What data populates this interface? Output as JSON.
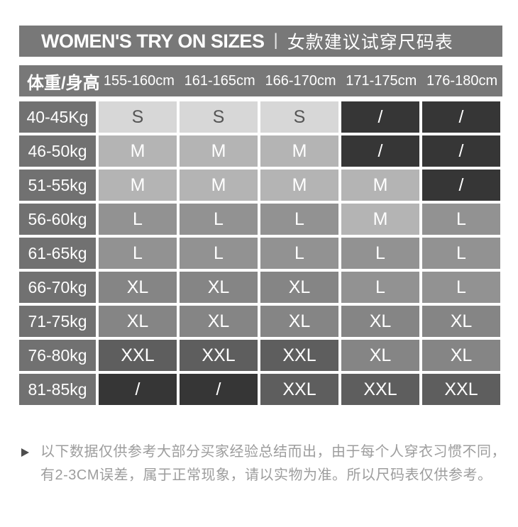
{
  "title": {
    "en": "WOMEN'S TRY ON SIZES",
    "separator": "|",
    "zh": "女款建议试穿尺码表"
  },
  "chart_data": {
    "type": "table",
    "title": "WOMEN'S TRY ON SIZES | 女款建议试穿尺码表",
    "columns": [
      "体重/身高",
      "155-160cm",
      "161-165cm",
      "166-170cm",
      "171-175cm",
      "176-180cm"
    ],
    "rows": [
      [
        "40-45Kg",
        "S",
        "S",
        "S",
        "/",
        "/"
      ],
      [
        "46-50kg",
        "M",
        "M",
        "M",
        "/",
        "/"
      ],
      [
        "51-55kg",
        "M",
        "M",
        "M",
        "M",
        "/"
      ],
      [
        "56-60kg",
        "L",
        "L",
        "L",
        "M",
        "L"
      ],
      [
        "61-65kg",
        "L",
        "L",
        "L",
        "L",
        "L"
      ],
      [
        "66-70kg",
        "XL",
        "XL",
        "XL",
        "L",
        "L"
      ],
      [
        "71-75kg",
        "XL",
        "XL",
        "XL",
        "XL",
        "XL"
      ],
      [
        "76-80kg",
        "XXL",
        "XXL",
        "XXL",
        "XL",
        "XL"
      ],
      [
        "81-85kg",
        "/",
        "/",
        "XXL",
        "XXL",
        "XXL"
      ]
    ]
  },
  "colors": {
    "header_bg": "#787878",
    "row_label_bg": "#717171",
    "by_size": {
      "S": {
        "bg": "#d7d7d7",
        "text": "#555555"
      },
      "M": {
        "bg": "#b4b4b4",
        "text": "#ffffff"
      },
      "L": {
        "bg": "#929292",
        "text": "#ffffff"
      },
      "XL": {
        "bg": "#858585",
        "text": "#ffffff"
      },
      "XXL": {
        "bg": "#5e5e5e",
        "text": "#ffffff"
      },
      "/": {
        "bg": "#363636",
        "text": "#ffffff"
      }
    }
  },
  "footnote": {
    "line1": "以下数据仅供参考大部分买家经验总结而出，由于每个人穿衣习惯不同，",
    "line2": "有2-3CM误差，属于正常现象，请以实物为准。所以尺码表仅供参考。"
  }
}
